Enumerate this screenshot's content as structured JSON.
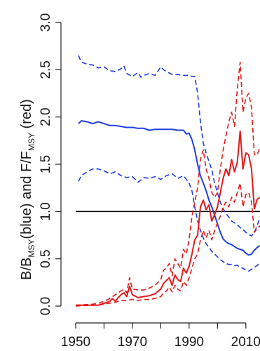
{
  "chart_data": {
    "type": "line",
    "title": "",
    "xlabel": "",
    "ylabel": {
      "part1": "B/B",
      "sub1": "MSY",
      "part2": "(blue) and F/F",
      "sub2": "MSY",
      "part3": " (red)"
    },
    "xlim": [
      1950,
      2015
    ],
    "ylim": [
      0,
      3
    ],
    "x_ticks": [
      1950,
      1970,
      1990,
      2010
    ],
    "x_tick_labels": [
      "1950",
      "1970",
      "1990",
      "2010"
    ],
    "y_ticks": [
      0,
      0.5,
      1,
      1.5,
      2,
      2.5,
      3
    ],
    "y_tick_labels": [
      "0.0",
      "0.5",
      "1.0",
      "1.5",
      "2.0",
      "2.5",
      "3.0"
    ],
    "reference_line": {
      "y": 1.0,
      "color": "#000000"
    },
    "grid": false,
    "legend": "none",
    "series": [
      {
        "color": "#1f3fe0",
        "dash": "solid",
        "x": [
          1951,
          1952,
          1954,
          1956,
          1958,
          1960,
          1962,
          1964,
          1966,
          1968,
          1970,
          1972,
          1974,
          1976,
          1978,
          1980,
          1982,
          1984,
          1986,
          1988,
          1989,
          1990,
          1991,
          1992,
          1993,
          1994,
          1995,
          1996,
          1997,
          1998,
          1999,
          2000,
          2001,
          2002,
          2003,
          2004,
          2005,
          2006,
          2007,
          2008,
          2009,
          2010,
          2011,
          2012,
          2013,
          2014,
          2015
        ],
        "y": [
          1.93,
          1.96,
          1.95,
          1.93,
          1.95,
          1.93,
          1.91,
          1.91,
          1.9,
          1.89,
          1.89,
          1.88,
          1.88,
          1.86,
          1.87,
          1.87,
          1.87,
          1.87,
          1.86,
          1.86,
          1.82,
          1.83,
          1.76,
          1.65,
          1.5,
          1.38,
          1.3,
          1.22,
          1.12,
          1.05,
          0.96,
          0.87,
          0.78,
          0.71,
          0.68,
          0.66,
          0.65,
          0.63,
          0.61,
          0.6,
          0.59,
          0.56,
          0.54,
          0.55,
          0.59,
          0.62,
          0.64
        ]
      },
      {
        "color": "#1f3fe0",
        "dash": "dashed",
        "x": [
          1951,
          1952,
          1954,
          1956,
          1958,
          1960,
          1962,
          1964,
          1966,
          1967,
          1968,
          1970,
          1972,
          1973,
          1974,
          1976,
          1978,
          1980,
          1981,
          1982,
          1984,
          1986,
          1988,
          1990,
          1991,
          1992,
          1993,
          1994,
          1995,
          1996,
          1997,
          1998,
          1999,
          2000,
          2001,
          2002,
          2003,
          2004,
          2005,
          2006,
          2007,
          2008,
          2009,
          2010,
          2011,
          2012,
          2013,
          2014,
          2015
        ],
        "y": [
          2.65,
          2.58,
          2.56,
          2.55,
          2.52,
          2.53,
          2.49,
          2.48,
          2.51,
          2.54,
          2.46,
          2.43,
          2.47,
          2.42,
          2.44,
          2.46,
          2.44,
          2.53,
          2.5,
          2.48,
          2.45,
          2.45,
          2.44,
          2.44,
          2.43,
          2.43,
          2.25,
          1.95,
          1.72,
          1.62,
          1.53,
          1.44,
          1.3,
          1.2,
          1.1,
          1.03,
          0.98,
          0.94,
          0.9,
          0.88,
          0.86,
          0.83,
          0.81,
          0.78,
          0.76,
          0.74,
          0.78,
          0.85,
          0.94
        ]
      },
      {
        "color": "#1f3fe0",
        "dash": "dashed",
        "x": [
          1951,
          1952,
          1954,
          1956,
          1958,
          1960,
          1962,
          1964,
          1966,
          1968,
          1970,
          1972,
          1974,
          1976,
          1978,
          1980,
          1982,
          1984,
          1986,
          1988,
          1990,
          1991,
          1992,
          1993,
          1994,
          1995,
          1996,
          1997,
          1998,
          1999,
          2000,
          2001,
          2002,
          2003,
          2004,
          2005,
          2006,
          2007,
          2008,
          2009,
          2010,
          2011,
          2012,
          2013,
          2014,
          2015
        ],
        "y": [
          1.32,
          1.38,
          1.42,
          1.45,
          1.45,
          1.43,
          1.4,
          1.42,
          1.38,
          1.36,
          1.37,
          1.31,
          1.36,
          1.35,
          1.37,
          1.34,
          1.38,
          1.4,
          1.35,
          1.38,
          1.3,
          1.22,
          1.05,
          0.9,
          0.8,
          0.72,
          0.66,
          0.62,
          0.58,
          0.55,
          0.52,
          0.49,
          0.47,
          0.45,
          0.44,
          0.44,
          0.43,
          0.43,
          0.41,
          0.4,
          0.38,
          0.37,
          0.39,
          0.41,
          0.43,
          0.46
        ]
      },
      {
        "color": "#e31a1c",
        "dash": "solid",
        "x": [
          1950,
          1954,
          1958,
          1960,
          1962,
          1963,
          1964,
          1965,
          1966,
          1967,
          1968,
          1969,
          1970,
          1972,
          1974,
          1976,
          1978,
          1980,
          1981,
          1982,
          1983,
          1984,
          1985,
          1986,
          1987,
          1988,
          1989,
          1990,
          1991,
          1992,
          1993,
          1994,
          1995,
          1996,
          1997,
          1998,
          1999,
          2000,
          2001,
          2002,
          2003,
          2004,
          2005,
          2006,
          2007,
          2008,
          2009,
          2010,
          2011,
          2012,
          2013,
          2014,
          2015
        ],
        "y": [
          0.01,
          0.01,
          0.01,
          0.03,
          0.05,
          0.08,
          0.05,
          0.09,
          0.12,
          0.14,
          0.1,
          0.21,
          0.12,
          0.09,
          0.1,
          0.11,
          0.13,
          0.18,
          0.24,
          0.27,
          0.3,
          0.22,
          0.33,
          0.28,
          0.26,
          0.4,
          0.35,
          0.42,
          0.55,
          0.7,
          0.75,
          1.05,
          1.12,
          1.02,
          1.07,
          0.9,
          0.97,
          1.05,
          1.2,
          1.35,
          1.45,
          1.38,
          1.55,
          1.42,
          1.52,
          1.85,
          1.45,
          1.62,
          1.6,
          1.45,
          1.03,
          1.13,
          1.15
        ]
      },
      {
        "color": "#e31a1c",
        "dash": "dashed",
        "x": [
          1950,
          1956,
          1958,
          1960,
          1962,
          1964,
          1966,
          1967,
          1968,
          1969,
          1970,
          1972,
          1974,
          1976,
          1978,
          1980,
          1981,
          1982,
          1983,
          1984,
          1985,
          1986,
          1987,
          1988,
          1989,
          1990,
          1991,
          1992,
          1993,
          1994,
          1995,
          1996,
          1997,
          1998,
          1999,
          2000,
          2001,
          2002,
          2003,
          2004,
          2005,
          2006,
          2007,
          2008,
          2009,
          2010,
          2011,
          2012,
          2013,
          2014,
          2015
        ],
        "y": [
          0.01,
          0.02,
          0.03,
          0.05,
          0.08,
          0.12,
          0.16,
          0.18,
          0.14,
          0.3,
          0.18,
          0.17,
          0.17,
          0.19,
          0.22,
          0.28,
          0.38,
          0.4,
          0.45,
          0.32,
          0.5,
          0.45,
          0.4,
          0.6,
          0.55,
          0.7,
          0.95,
          1.1,
          1.25,
          1.55,
          1.65,
          1.45,
          1.35,
          1.2,
          1.15,
          1.2,
          1.45,
          1.65,
          1.8,
          1.95,
          2.05,
          1.9,
          2.3,
          2.58,
          2.05,
          2.2,
          2.25,
          2.1,
          1.6,
          1.6,
          1.68
        ]
      },
      {
        "color": "#e31a1c",
        "dash": "dashed",
        "x": [
          1950,
          1956,
          1958,
          1960,
          1962,
          1964,
          1966,
          1968,
          1970,
          1972,
          1974,
          1976,
          1978,
          1980,
          1981,
          1982,
          1983,
          1984,
          1985,
          1986,
          1987,
          1988,
          1989,
          1990,
          1991,
          1992,
          1993,
          1994,
          1995,
          1996,
          1997,
          1998,
          1999,
          2000,
          2001,
          2002,
          2003,
          2004,
          2005,
          2006,
          2007,
          2008,
          2009,
          2010,
          2011,
          2012,
          2013,
          2014,
          2015
        ],
        "y": [
          0.0,
          0.01,
          0.01,
          0.02,
          0.03,
          0.04,
          0.06,
          0.06,
          0.07,
          0.06,
          0.07,
          0.07,
          0.08,
          0.1,
          0.14,
          0.16,
          0.2,
          0.15,
          0.22,
          0.18,
          0.16,
          0.26,
          0.22,
          0.3,
          0.4,
          0.5,
          0.55,
          0.7,
          0.8,
          0.72,
          0.8,
          0.7,
          0.8,
          0.88,
          0.95,
          1.05,
          1.1,
          1.05,
          1.15,
          1.1,
          1.2,
          1.3,
          1.05,
          1.18,
          1.2,
          1.1,
          0.78,
          0.82,
          0.85
        ]
      }
    ]
  }
}
